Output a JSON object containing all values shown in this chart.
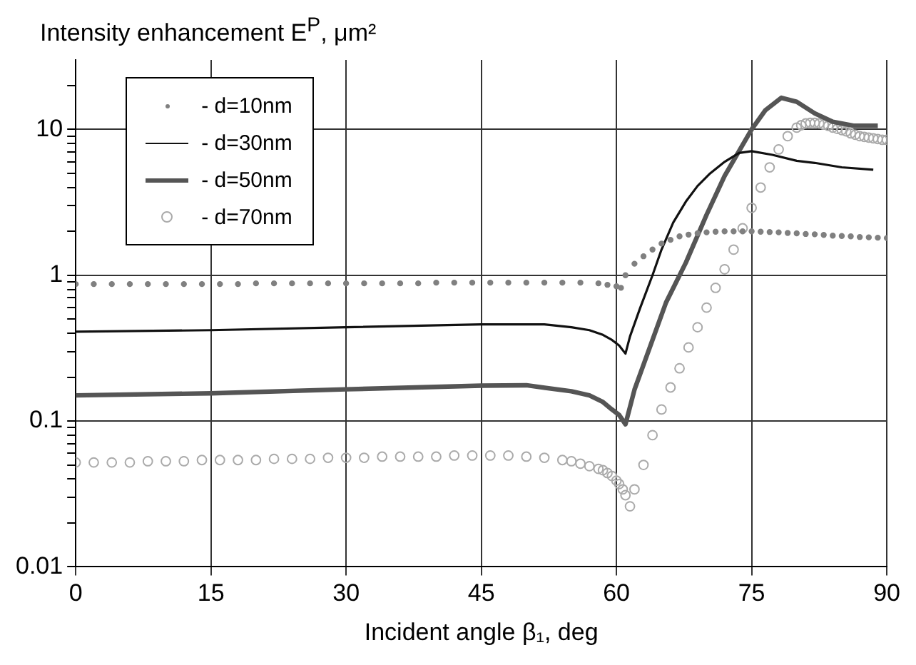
{
  "chart_data": {
    "type": "line",
    "ylabel": "Intensity enhancement E$^{P}$, μm²",
    "xlabel": "Incident angle β₁, deg",
    "xlim": [
      0,
      90
    ],
    "xticks": [
      0,
      15,
      30,
      45,
      60,
      75,
      90
    ],
    "ylim": [
      0.01,
      30
    ],
    "yticks": [
      0.01,
      {
        "value": 0.02,
        "label": null
      },
      {
        "value": 0.03,
        "label": null
      },
      {
        "value": 0.04,
        "label": null
      },
      {
        "value": 0.05,
        "label": null
      },
      {
        "value": 0.06,
        "label": null
      },
      {
        "value": 0.07,
        "label": null
      },
      {
        "value": 0.08,
        "label": null
      },
      {
        "value": 0.09,
        "label": null
      },
      0.1,
      {
        "value": 0.2,
        "label": null
      },
      {
        "value": 0.3,
        "label": null
      },
      {
        "value": 0.4,
        "label": null
      },
      {
        "value": 0.5,
        "label": null
      },
      {
        "value": 0.6,
        "label": null
      },
      {
        "value": 0.7,
        "label": null
      },
      {
        "value": 0.8,
        "label": null
      },
      {
        "value": 0.9,
        "label": null
      },
      1,
      {
        "value": 2,
        "label": null
      },
      {
        "value": 3,
        "label": null
      },
      {
        "value": 4,
        "label": null
      },
      {
        "value": 5,
        "label": null
      },
      {
        "value": 6,
        "label": null
      },
      {
        "value": 7,
        "label": null
      },
      {
        "value": 8,
        "label": null
      },
      {
        "value": 9,
        "label": null
      },
      10,
      {
        "value": 20,
        "label": null
      }
    ],
    "log": "y",
    "grid": true,
    "legend": "top left",
    "series": [
      {
        "name": "- d=10nm",
        "type": "scatter",
        "marker": "circle",
        "color": "#808080",
        "x": [
          0,
          2,
          4,
          6,
          8,
          10,
          12,
          14,
          16,
          18,
          20,
          22,
          24,
          26,
          28,
          30,
          32,
          34,
          36,
          38,
          40,
          42,
          44,
          46,
          48,
          50,
          52,
          54,
          56,
          58,
          59,
          60,
          60.5,
          61,
          62,
          63,
          64,
          65,
          66,
          67,
          68,
          69,
          70,
          71,
          72,
          73,
          74,
          75,
          76,
          77,
          78,
          79,
          80,
          81,
          82,
          83,
          84,
          85,
          86,
          87,
          88,
          89,
          90
        ],
        "values": [
          0.87,
          0.87,
          0.87,
          0.87,
          0.87,
          0.87,
          0.87,
          0.87,
          0.87,
          0.87,
          0.88,
          0.88,
          0.88,
          0.88,
          0.88,
          0.88,
          0.88,
          0.88,
          0.88,
          0.88,
          0.89,
          0.89,
          0.89,
          0.89,
          0.89,
          0.89,
          0.89,
          0.89,
          0.89,
          0.88,
          0.86,
          0.84,
          0.82,
          1.0,
          1.2,
          1.35,
          1.5,
          1.65,
          1.75,
          1.85,
          1.9,
          1.94,
          1.97,
          1.99,
          2.0,
          2.0,
          2.0,
          2.0,
          1.99,
          1.98,
          1.97,
          1.95,
          1.94,
          1.92,
          1.91,
          1.89,
          1.87,
          1.86,
          1.85,
          1.83,
          1.82,
          1.81,
          1.8
        ]
      },
      {
        "name": "- d=30nm",
        "type": "line",
        "marker": "none",
        "line_style": "solid",
        "color": "#111111",
        "x": [
          0,
          15,
          30,
          45,
          52,
          55,
          57,
          58.5,
          59.5,
          60.3,
          61,
          61.5,
          62.6,
          64,
          65,
          66.3,
          67.7,
          69,
          70.4,
          72,
          73.6,
          75,
          77.3,
          80,
          82,
          85,
          88.5
        ],
        "values": [
          0.41,
          0.42,
          0.44,
          0.46,
          0.46,
          0.44,
          0.42,
          0.39,
          0.36,
          0.33,
          0.29,
          0.38,
          0.59,
          1.0,
          1.5,
          2.3,
          3.2,
          4.1,
          5.0,
          6.0,
          6.9,
          7.1,
          6.7,
          6.1,
          5.9,
          5.5,
          5.3
        ]
      },
      {
        "name": "- d=50nm",
        "type": "line",
        "marker": "none",
        "line_style": "solid",
        "color": "#555555",
        "x": [
          0,
          15,
          30,
          45,
          50,
          55,
          57,
          58.5,
          59.5,
          60.3,
          61,
          62,
          64,
          65.5,
          67.7,
          70,
          72,
          75,
          76.5,
          78.3,
          80,
          82,
          84,
          86.4,
          89
        ],
        "values": [
          0.15,
          0.155,
          0.165,
          0.175,
          0.176,
          0.16,
          0.15,
          0.135,
          0.12,
          0.11,
          0.095,
          0.164,
          0.36,
          0.65,
          1.22,
          2.6,
          4.8,
          10,
          13.5,
          16.5,
          15.5,
          12.9,
          11.3,
          10.6,
          10.6
        ]
      },
      {
        "name": "- d=70nm",
        "type": "scatter",
        "marker": "circle",
        "color": "#aaaaaa",
        "x": [
          0,
          2,
          4,
          6,
          8,
          10,
          12,
          14,
          16,
          18,
          20,
          22,
          24,
          26,
          28,
          30,
          32,
          34,
          36,
          38,
          40,
          42,
          44,
          46,
          48,
          50,
          52,
          54,
          55,
          56,
          57,
          58,
          58.5,
          59,
          59.5,
          60,
          60.3,
          60.7,
          61,
          61.5,
          62,
          63,
          64,
          65,
          66,
          67,
          68,
          69,
          70,
          71,
          72,
          73,
          74,
          75,
          76,
          77,
          78,
          79,
          80,
          80.5,
          81,
          81.5,
          82,
          82.5,
          83,
          83.5,
          84,
          84.5,
          85,
          85.5,
          86,
          86.5,
          87,
          87.5,
          88,
          88.5,
          89,
          89.5,
          90
        ],
        "values": [
          0.052,
          0.052,
          0.052,
          0.052,
          0.053,
          0.053,
          0.053,
          0.054,
          0.054,
          0.054,
          0.054,
          0.055,
          0.055,
          0.055,
          0.056,
          0.056,
          0.056,
          0.057,
          0.057,
          0.057,
          0.057,
          0.058,
          0.058,
          0.058,
          0.058,
          0.057,
          0.056,
          0.054,
          0.053,
          0.051,
          0.049,
          0.047,
          0.046,
          0.044,
          0.042,
          0.039,
          0.037,
          0.034,
          0.031,
          0.026,
          0.034,
          0.05,
          0.08,
          0.12,
          0.17,
          0.23,
          0.32,
          0.44,
          0.6,
          0.82,
          1.1,
          1.5,
          2.1,
          2.9,
          4.0,
          5.5,
          7.3,
          9.0,
          10.3,
          10.7,
          11.0,
          11.1,
          11.1,
          11.0,
          10.8,
          10.6,
          10.3,
          10.1,
          9.9,
          9.7,
          9.4,
          9.2,
          9.0,
          8.9,
          8.8,
          8.7,
          8.6,
          8.5,
          8.5
        ]
      }
    ]
  }
}
